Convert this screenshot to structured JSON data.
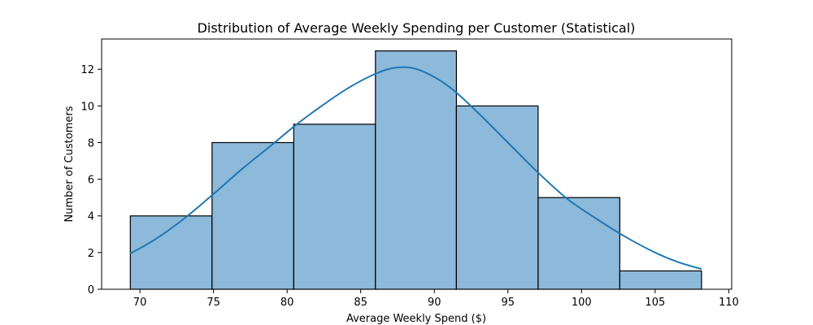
{
  "chart_data": {
    "type": "bar",
    "title": "Distribution of Average Weekly Spending per Customer (Statistical)",
    "xlabel": "Average Weekly Spend ($)",
    "ylabel": "Number of Customers",
    "xlim": [
      67.4,
      110.2
    ],
    "ylim": [
      0,
      13.65
    ],
    "xticks": [
      70,
      75,
      80,
      85,
      90,
      95,
      100,
      105,
      110
    ],
    "yticks": [
      0,
      2,
      4,
      6,
      8,
      10,
      12
    ],
    "bins": [
      {
        "x0": 69.35,
        "x1": 74.9,
        "count": 4
      },
      {
        "x0": 74.9,
        "x1": 80.45,
        "count": 8
      },
      {
        "x0": 80.45,
        "x1": 86.0,
        "count": 9
      },
      {
        "x0": 86.0,
        "x1": 91.5,
        "count": 13
      },
      {
        "x0": 91.5,
        "x1": 97.05,
        "count": 10
      },
      {
        "x0": 97.05,
        "x1": 102.6,
        "count": 5
      },
      {
        "x0": 102.6,
        "x1": 108.15,
        "count": 1
      }
    ],
    "kde": {
      "x": [
        69.35,
        71,
        73,
        75,
        77,
        79,
        80.5,
        82,
        84,
        86,
        87.5,
        89,
        91,
        93,
        95,
        97,
        99,
        101,
        103,
        105,
        106.5,
        108.15
      ],
      "y": [
        1.95,
        2.7,
        3.85,
        5.2,
        6.6,
        7.9,
        8.9,
        9.8,
        10.9,
        11.75,
        12.1,
        11.95,
        11.05,
        9.6,
        8.0,
        6.4,
        4.95,
        3.85,
        2.85,
        2.0,
        1.5,
        1.1
      ]
    },
    "bar_color": "#8db9da",
    "bar_edge_color": "#000000",
    "kde_color": "#1f77b4",
    "grid": false,
    "legend": "none"
  }
}
